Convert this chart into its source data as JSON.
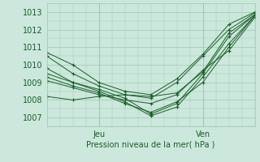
{
  "title": "",
  "xlabel": "Pression niveau de la mer( hPa )",
  "ylabel": "",
  "bg_color": "#cce8dc",
  "grid_color": "#9ec8b4",
  "line_color": "#1a5c28",
  "marker_color": "#1a5c28",
  "ylim": [
    1006.5,
    1013.5
  ],
  "xlim": [
    0,
    48
  ],
  "tick_label_color": "#1a5c28",
  "xtick_positions": [
    12,
    36
  ],
  "xtick_labels": [
    "Jeu",
    "Ven"
  ],
  "ytick_positions": [
    1007,
    1008,
    1009,
    1010,
    1011,
    1012,
    1013
  ],
  "series": [
    [
      0,
      1010.7,
      6,
      1010.0,
      12,
      1009.0,
      18,
      1008.5,
      24,
      1008.3,
      30,
      1009.2,
      36,
      1010.6,
      42,
      1012.3,
      48,
      1013.0
    ],
    [
      0,
      1010.5,
      6,
      1009.5,
      12,
      1008.8,
      18,
      1008.3,
      24,
      1008.1,
      30,
      1009.0,
      36,
      1010.5,
      42,
      1012.0,
      48,
      1012.95
    ],
    [
      0,
      1009.8,
      6,
      1009.0,
      12,
      1008.6,
      18,
      1008.1,
      24,
      1007.2,
      30,
      1007.8,
      36,
      1009.5,
      42,
      1011.6,
      48,
      1012.85
    ],
    [
      0,
      1009.5,
      6,
      1009.0,
      12,
      1008.5,
      18,
      1007.9,
      24,
      1007.1,
      30,
      1007.6,
      36,
      1009.3,
      42,
      1011.2,
      48,
      1012.8
    ],
    [
      0,
      1009.3,
      6,
      1008.8,
      12,
      1008.4,
      18,
      1007.8,
      24,
      1007.3,
      30,
      1007.9,
      36,
      1009.0,
      42,
      1011.0,
      48,
      1012.8
    ],
    [
      0,
      1009.1,
      6,
      1008.7,
      12,
      1008.3,
      18,
      1008.0,
      24,
      1007.8,
      30,
      1008.3,
      36,
      1009.7,
      42,
      1010.8,
      48,
      1012.7
    ],
    [
      0,
      1008.2,
      6,
      1008.0,
      12,
      1008.2,
      18,
      1008.3,
      24,
      1008.2,
      30,
      1008.4,
      36,
      1009.6,
      42,
      1011.8,
      48,
      1012.85
    ]
  ]
}
